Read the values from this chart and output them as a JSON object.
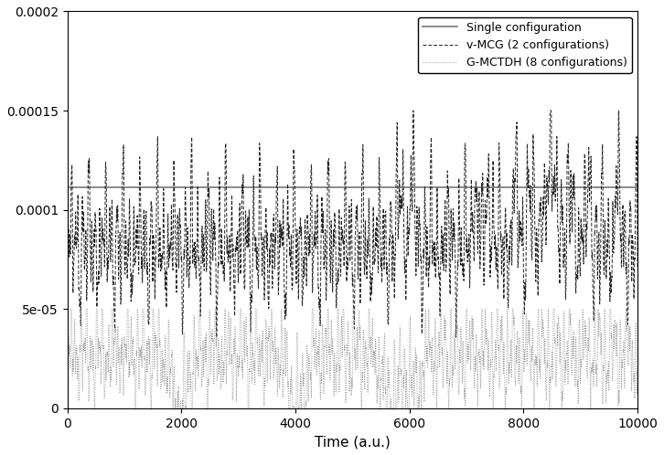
{
  "title": "",
  "xlabel": "Time (a.u.)",
  "ylabel": "",
  "xlim": [
    0,
    10000
  ],
  "ylim": [
    0,
    0.0002
  ],
  "yticks": [
    0,
    5e-05,
    0.0001,
    0.00015,
    0.0002
  ],
  "ytick_labels": [
    "0",
    "5e-05",
    "0.0001",
    "0.00015",
    "0.0002"
  ],
  "xticks": [
    0,
    2000,
    4000,
    6000,
    8000,
    10000
  ],
  "single_value": 0.0001115,
  "single_color": "#777777",
  "vmcg_color": "#222222",
  "gmctdh_color": "#999999",
  "legend_labels": [
    "Single configuration",
    "v-MCG (2 configurations)",
    "G-MCTDH (8 configurations)"
  ],
  "figsize": [
    7.26,
    4.98
  ],
  "dpi": 100,
  "n_points": 5000
}
